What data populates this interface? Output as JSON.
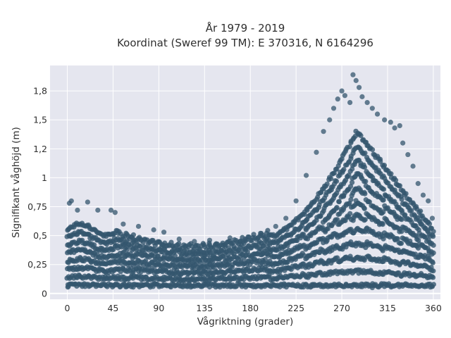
{
  "chart_data": {
    "type": "scatter",
    "title_lines": [
      "År 1979 - 2019",
      "Koordinat (Sweref 99 TM): E 370316, N 6164296"
    ],
    "xlabel": "Vågriktning (grader)",
    "ylabel": "Signifikant våghöjd (m)",
    "xlim": [
      -17,
      367
    ],
    "ylim": [
      -0.05,
      1.97
    ],
    "x_ticks": [
      0,
      45,
      90,
      135,
      180,
      225,
      270,
      315,
      360
    ],
    "x_tick_labels": [
      "0",
      "45",
      "90",
      "135",
      "180",
      "225",
      "270",
      "315",
      "360"
    ],
    "y_ticks": [
      0,
      0.25,
      0.5,
      0.75,
      1,
      1.25,
      1.5,
      1.75
    ],
    "y_tick_labels": [
      "0",
      "0,25",
      "0,5",
      "0,75",
      "1",
      "1,2",
      "1,5",
      "1,8"
    ],
    "grid": true,
    "legend": "none",
    "colors": {
      "marker": "#34566e",
      "plot_bg": "#e5e6ef",
      "grid": "#ffffff",
      "text": "#2f2f2f"
    },
    "series": [
      {
        "marker": "circle",
        "points": [
          [
            2,
            0.78
          ],
          [
            4,
            0.8
          ],
          [
            10,
            0.72
          ],
          [
            20,
            0.79
          ],
          [
            30,
            0.72
          ],
          [
            43,
            0.72
          ],
          [
            47,
            0.7
          ],
          [
            55,
            0.6
          ],
          [
            70,
            0.58
          ],
          [
            85,
            0.55
          ],
          [
            95,
            0.53
          ],
          [
            110,
            0.47
          ],
          [
            125,
            0.45
          ],
          [
            140,
            0.46
          ],
          [
            160,
            0.48
          ],
          [
            175,
            0.47
          ],
          [
            190,
            0.52
          ],
          [
            205,
            0.58
          ],
          [
            215,
            0.65
          ],
          [
            225,
            0.8
          ],
          [
            235,
            1.02
          ],
          [
            245,
            1.22
          ],
          [
            252,
            1.4
          ],
          [
            258,
            1.5
          ],
          [
            262,
            1.6
          ],
          [
            266,
            1.68
          ],
          [
            270,
            1.75
          ],
          [
            273,
            1.71
          ],
          [
            278,
            1.65
          ],
          [
            281,
            1.89
          ],
          [
            284,
            1.84
          ],
          [
            287,
            1.78
          ],
          [
            290,
            1.7
          ],
          [
            295,
            1.65
          ],
          [
            300,
            1.6
          ],
          [
            305,
            1.55
          ],
          [
            312,
            1.5
          ],
          [
            318,
            1.48
          ],
          [
            322,
            1.43
          ],
          [
            327,
            1.45
          ],
          [
            330,
            1.3
          ],
          [
            335,
            1.2
          ],
          [
            340,
            1.1
          ],
          [
            345,
            0.95
          ],
          [
            350,
            0.85
          ],
          [
            355,
            0.8
          ],
          [
            359,
            0.65
          ],
          [
            1,
            0.06
          ],
          [
            60,
            0.07
          ],
          [
            120,
            0.08
          ],
          [
            180,
            0.07
          ],
          [
            240,
            0.06
          ],
          [
            300,
            0.05
          ],
          [
            359,
            0.06
          ]
        ]
      }
    ]
  }
}
